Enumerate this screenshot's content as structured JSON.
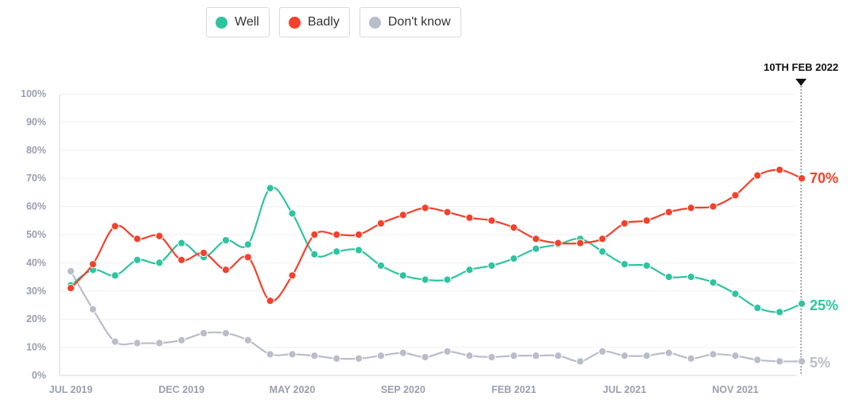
{
  "legend": [
    {
      "key": "well",
      "label": "Well",
      "color": "#2ec4a0"
    },
    {
      "key": "badly",
      "label": "Badly",
      "color": "#f2412c"
    },
    {
      "key": "dontknow",
      "label": "Don't know",
      "color": "#b9bcc9"
    }
  ],
  "chart_data": {
    "type": "line",
    "title": "",
    "xlabel": "",
    "ylabel": "",
    "ylim": [
      0,
      100
    ],
    "y_ticks": [
      "0%",
      "10%",
      "20%",
      "30%",
      "40%",
      "50%",
      "60%",
      "70%",
      "80%",
      "90%",
      "100%"
    ],
    "x_ticks": [
      {
        "label": "JUL 2019",
        "index": 0
      },
      {
        "label": "DEC 2019",
        "index": 5
      },
      {
        "label": "MAY 2020",
        "index": 10
      },
      {
        "label": "SEP 2020",
        "index": 15
      },
      {
        "label": "FEB 2021",
        "index": 20
      },
      {
        "label": "JUL 2021",
        "index": 25
      },
      {
        "label": "NOV 2021",
        "index": 30
      }
    ],
    "marker": {
      "label": "10TH FEB 2022",
      "index": 32.5
    },
    "series": [
      {
        "name": "Well",
        "color": "#2ec4a0",
        "end_label": "25%",
        "values": [
          32,
          37.5,
          35.5,
          41,
          40,
          47,
          42,
          48,
          46.5,
          66.5,
          57.5,
          43,
          44,
          44.5,
          39,
          35.5,
          34,
          34,
          37.5,
          39,
          41.5,
          45,
          46.5,
          48.5,
          44,
          39.5,
          39,
          35,
          35,
          33,
          29,
          24,
          22.5,
          25.5
        ]
      },
      {
        "name": "Badly",
        "color": "#f2412c",
        "end_label": "70%",
        "values": [
          31,
          39.5,
          53,
          48.5,
          49.5,
          41,
          43.5,
          37.5,
          42,
          26.5,
          35.5,
          50,
          50,
          50,
          54,
          57,
          59.5,
          58,
          56,
          55,
          52.5,
          48.5,
          47,
          47,
          48.5,
          54,
          55,
          58,
          59.5,
          60,
          64,
          71,
          73,
          70
        ]
      },
      {
        "name": "Don't know",
        "color": "#b9bcc9",
        "end_label": "5%",
        "values": [
          37,
          23.5,
          12,
          11.5,
          11.5,
          12.5,
          15,
          15,
          12.5,
          7.5,
          7.5,
          7,
          6,
          6,
          7,
          8,
          6.5,
          8.5,
          7,
          6.5,
          7,
          7,
          7,
          5,
          8.5,
          7,
          7,
          8,
          6,
          7.5,
          7,
          5.5,
          5,
          5
        ]
      }
    ]
  }
}
